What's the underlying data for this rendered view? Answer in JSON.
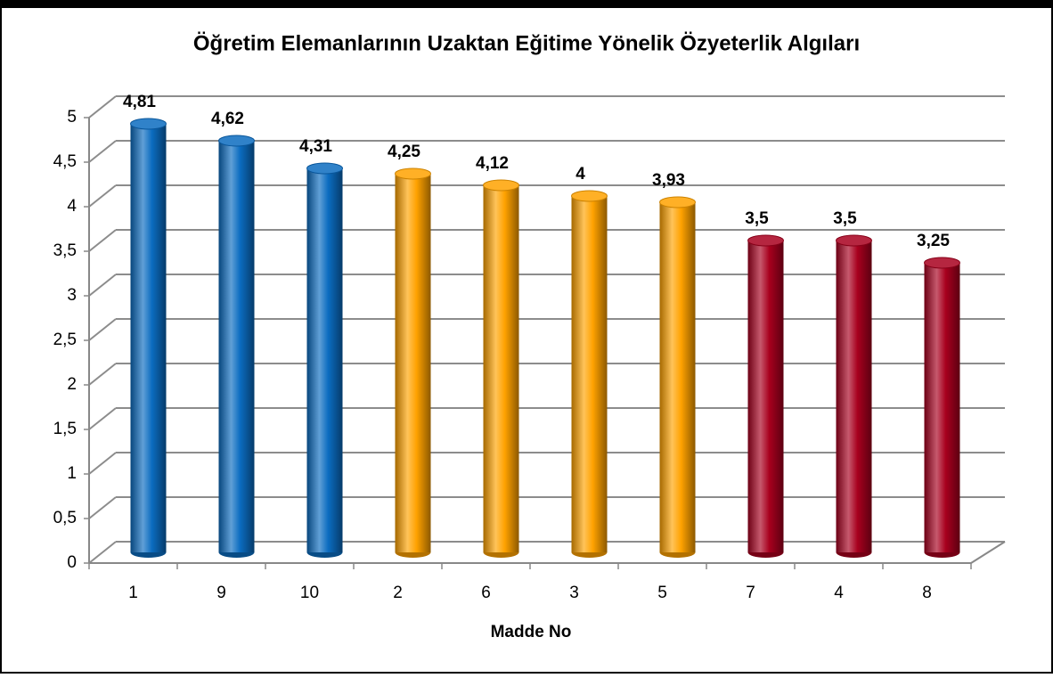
{
  "chart_data": {
    "type": "bar",
    "title": "Öğretim Elemanlarının Uzaktan Eğitime Yönelik Özyeterlik Algıları",
    "x_label": "Madde No",
    "categories": [
      "1",
      "9",
      "10",
      "2",
      "6",
      "3",
      "5",
      "7",
      "4",
      "8"
    ],
    "values": [
      4.81,
      4.62,
      4.31,
      4.25,
      4.12,
      4,
      3.93,
      3.5,
      3.5,
      3.25
    ],
    "value_labels": [
      "4,81",
      "4,62",
      "4,31",
      "4,25",
      "4,12",
      "4",
      "3,93",
      "3,5",
      "3,5",
      "3,25"
    ],
    "colors": [
      "#0b6cc0",
      "#0b6cc0",
      "#0b6cc0",
      "#ffa200",
      "#ffa200",
      "#ffa200",
      "#ffa200",
      "#a8001e",
      "#a8001e",
      "#a8001e"
    ],
    "ylim": [
      0,
      5
    ],
    "yticks": [
      0,
      {
        "value": 0.5,
        "label": "0,5"
      },
      1,
      {
        "value": 1.5,
        "label": "1,5"
      },
      2,
      {
        "value": 2.5,
        "label": "2,5"
      },
      3,
      {
        "value": 3.5,
        "label": "3,5"
      },
      4,
      {
        "value": 4.5,
        "label": "4,5"
      },
      5
    ],
    "grid": true
  }
}
